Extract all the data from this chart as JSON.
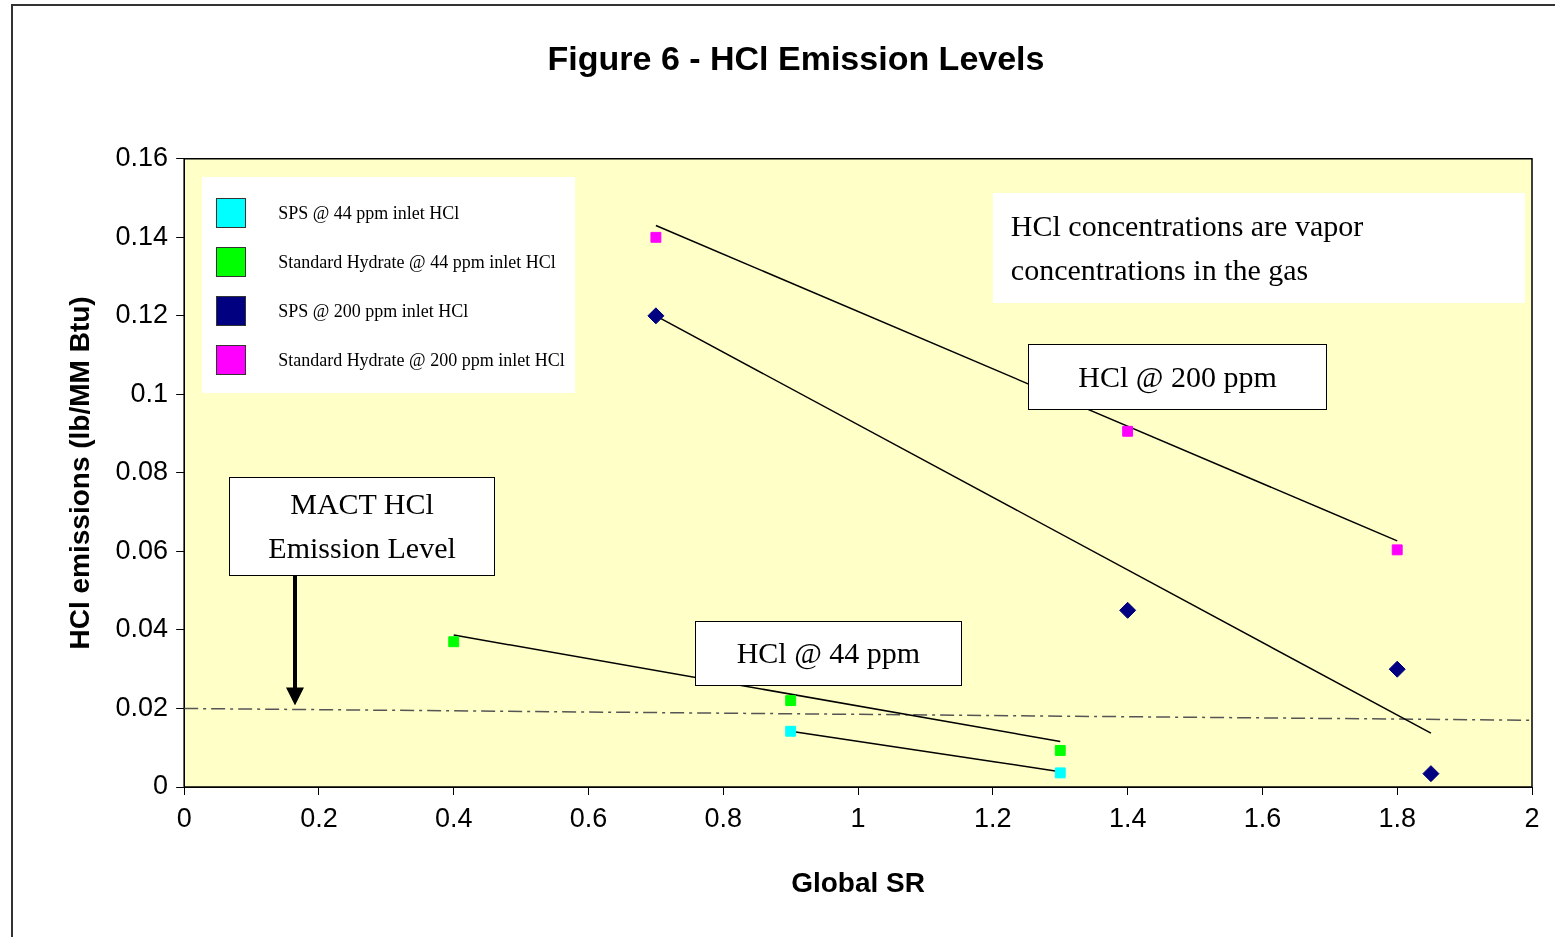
{
  "chart_data": {
    "type": "scatter",
    "title": "Figure 6 - HCl Emission Levels",
    "xlabel": "Global SR",
    "ylabel": "HCl emissions (lb/MM Btu)",
    "xlim": [
      0,
      2
    ],
    "xticks": [
      0,
      0.2,
      0.4,
      0.6,
      0.8,
      1,
      1.2,
      1.4,
      1.6,
      1.8,
      2
    ],
    "ylim": [
      0,
      0.16
    ],
    "yticks": [
      0,
      0.02,
      0.04,
      0.06,
      0.08,
      0.1,
      0.12,
      0.14,
      0.16
    ],
    "grid": false,
    "legend": "top left",
    "marker": "square",
    "series": [
      {
        "name": "SPS @ 44 ppm inlet HCl",
        "color": "#00ffff",
        "x": [
          0.9,
          1.3
        ],
        "values": [
          0.0142,
          0.0036
        ]
      },
      {
        "name": "Standard Hydrate @ 44 ppm inlet HCl",
        "color": "#00ff00",
        "x": [
          0.4,
          0.9,
          1.3
        ],
        "values": [
          0.037,
          0.022,
          0.0093
        ]
      },
      {
        "name": "SPS @ 200 ppm inlet HCl",
        "color": "#000080",
        "marker": "diamond",
        "x": [
          0.7,
          1.4,
          1.8,
          1.85
        ],
        "values": [
          0.12,
          0.045,
          0.03,
          0.0034
        ]
      },
      {
        "name": "Standard Hydrate @ 200 ppm inlet HCl",
        "color": "#ff00ff",
        "x": [
          0.7,
          1.4,
          1.8
        ],
        "values": [
          0.14,
          0.0906,
          0.0604
        ]
      },
      {
        "type": "line",
        "color": "#000000",
        "marker": "none",
        "x": [
          0.7,
          1.8
        ],
        "values": [
          0.143,
          0.0627
        ]
      },
      {
        "type": "line",
        "color": "#000000",
        "marker": "none",
        "x": [
          0.7,
          1.85
        ],
        "values": [
          0.12,
          0.0137
        ]
      },
      {
        "type": "line",
        "color": "#000000",
        "marker": "none",
        "x": [
          0.4,
          1.3
        ],
        "values": [
          0.0387,
          0.0116
        ]
      },
      {
        "type": "line",
        "color": "#000000",
        "marker": "none",
        "x": [
          0.9,
          1.3
        ],
        "values": [
          0.0142,
          0.0039
        ]
      },
      {
        "type": "line",
        "color": "#555555",
        "marker": "none",
        "line_style": "dashed",
        "x": [
          0,
          2
        ],
        "values": [
          0.02,
          0.017
        ]
      }
    ],
    "annotations": [
      "HCl concentrations are vapor concentrations in the gas",
      "HCl @ 200 ppm",
      "HCl @ 44 ppm",
      "MACT HCl Emission Level"
    ]
  }
}
